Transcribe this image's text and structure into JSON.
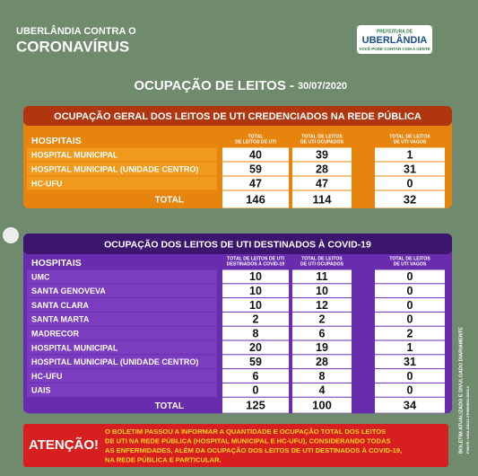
{
  "header": {
    "campaign_logo": {
      "line1": "UBERLÂNDIA CONTRA O",
      "line2": "CORONAVÍRUS"
    },
    "city_logo": {
      "line1": "PREFEITURA DE",
      "line2": "UBERLÂNDIA",
      "tagline": "VOCÊ PODE CONTAR COM A GENTE"
    }
  },
  "title": {
    "text": "OCUPAÇÃO DE LEITOS -",
    "date": "30/07/2020"
  },
  "tables": [
    {
      "title": "OCUPAÇÃO GERAL DOS LEITOS DE UTI CREDENCIADOS NA REDE PÚBLICA",
      "columns": [
        "HOSPITAIS",
        [
          "TOTAL",
          "DE LEITOS DE UTI"
        ],
        [
          "TOTAL DE LEITOS",
          "DE UTI OCUPADOS"
        ],
        [
          "TOTAL DE LEITOS",
          "DE UTI VAGOS"
        ]
      ],
      "rows": [
        [
          "HOSPITAL MUNICIPAL",
          40,
          39,
          1
        ],
        [
          "HOSPITAL MUNICIPAL (UNIDADE CENTRO)",
          59,
          28,
          31
        ],
        [
          "HC-UFU",
          47,
          47,
          0
        ]
      ],
      "total": [
        "TOTAL",
        146,
        114,
        32
      ]
    },
    {
      "title": "OCUPAÇÃO DOS LEITOS DE UTI DESTINADOS À COVID-19",
      "columns": [
        "HOSPITAIS",
        [
          "TOTAL DE LEITOS DE UTI",
          "DESTINADOS À COVID-19"
        ],
        [
          "TOTAL DE LEITOS",
          "DE UTI OCUPADOS"
        ],
        [
          "TOTAL DE LEITOS",
          "DE UTI VAGOS"
        ]
      ],
      "rows": [
        [
          "UMC",
          10,
          11,
          0
        ],
        [
          "SANTA GENOVEVA",
          10,
          10,
          0
        ],
        [
          "SANTA CLARA",
          10,
          12,
          0
        ],
        [
          "SANTA MARTA",
          2,
          2,
          0
        ],
        [
          "MADRECOR",
          8,
          6,
          2
        ],
        [
          "HOSPITAL MUNICIPAL",
          20,
          19,
          1
        ],
        [
          "HOSPITAL MUNICIPAL (UNIDADE CENTRO)",
          59,
          28,
          31
        ],
        [
          "HC-UFU",
          6,
          8,
          0
        ],
        [
          "UAIS",
          0,
          4,
          0
        ]
      ],
      "total": [
        "TOTAL",
        125,
        100,
        34
      ]
    }
  ],
  "attention": {
    "label": "ATENÇÃO!",
    "lines": [
      "O BOLETIM PASSOU A INFORMAR A QUANTIDADE E OCUPAÇÃO TOTAL DOS LEITOS",
      "DE UTI NA REDE PÚBLICA (HOSPITAL MUNICIPAL E HC-UFU), CONSIDERANDO TODAS",
      "AS ENFERMIDADES, ALÉM DA OCUPAÇÃO DOS LEITOS DE UTI DESTINADOS À COVID-19,",
      "NA REDE PÚBLICA E PARTICULAR."
    ]
  },
  "side_note": {
    "line1": "BOLETIM ATUALIZADO E DIVULGADO DIARIAMENTE",
    "line2": "FONTE: VIGILÂNCIA EPIDEMIOLÓGICA"
  }
}
